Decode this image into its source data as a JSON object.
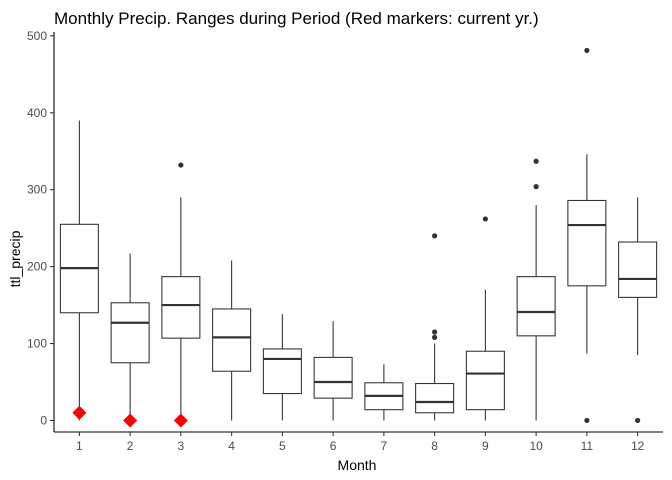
{
  "chart_data": {
    "type": "boxplot",
    "title": "Monthly Precip. Ranges during Period (Red markers: current yr.)",
    "xlabel": "Month",
    "ylabel": "ttl_precip",
    "categories": [
      "1",
      "2",
      "3",
      "4",
      "5",
      "6",
      "7",
      "8",
      "9",
      "10",
      "11",
      "12"
    ],
    "yticks": [
      0,
      100,
      200,
      300,
      400,
      500
    ],
    "ylim": [
      -15,
      505
    ],
    "grid": false,
    "colors": {
      "box_line": "#333333",
      "box_fill": "#ffffff",
      "current_marker": "#ff0000"
    },
    "series": [
      {
        "category": "1",
        "min": 0,
        "q1": 140,
        "median": 198,
        "q3": 255,
        "max": 390,
        "outliers": []
      },
      {
        "category": "2",
        "min": 0,
        "q1": 75,
        "median": 127,
        "q3": 153,
        "max": 217,
        "outliers": []
      },
      {
        "category": "3",
        "min": 0,
        "q1": 107,
        "median": 150,
        "q3": 187,
        "max": 290,
        "outliers": [
          332
        ]
      },
      {
        "category": "4",
        "min": 0,
        "q1": 64,
        "median": 108,
        "q3": 145,
        "max": 208,
        "outliers": []
      },
      {
        "category": "5",
        "min": 0,
        "q1": 35,
        "median": 80,
        "q3": 93,
        "max": 138,
        "outliers": []
      },
      {
        "category": "6",
        "min": 0,
        "q1": 29,
        "median": 50,
        "q3": 82,
        "max": 129,
        "outliers": []
      },
      {
        "category": "7",
        "min": 0,
        "q1": 14,
        "median": 32,
        "q3": 49,
        "max": 73,
        "outliers": []
      },
      {
        "category": "8",
        "min": 0,
        "q1": 10,
        "median": 24,
        "q3": 48,
        "max": 100,
        "outliers": [
          108,
          115,
          240
        ]
      },
      {
        "category": "9",
        "min": 0,
        "q1": 14,
        "median": 61,
        "q3": 90,
        "max": 170,
        "outliers": [
          262
        ]
      },
      {
        "category": "10",
        "min": 0,
        "q1": 110,
        "median": 141,
        "q3": 187,
        "max": 280,
        "outliers": [
          304,
          337
        ]
      },
      {
        "category": "11",
        "min": 87,
        "q1": 175,
        "median": 254,
        "q3": 286,
        "max": 346,
        "outliers": [
          0,
          481
        ]
      },
      {
        "category": "12",
        "min": 85,
        "q1": 160,
        "median": 184,
        "q3": 232,
        "max": 290,
        "outliers": [
          0
        ]
      }
    ],
    "current_year": [
      {
        "category": "1",
        "value": 10
      },
      {
        "category": "2",
        "value": 0
      },
      {
        "category": "3",
        "value": 0
      }
    ]
  }
}
